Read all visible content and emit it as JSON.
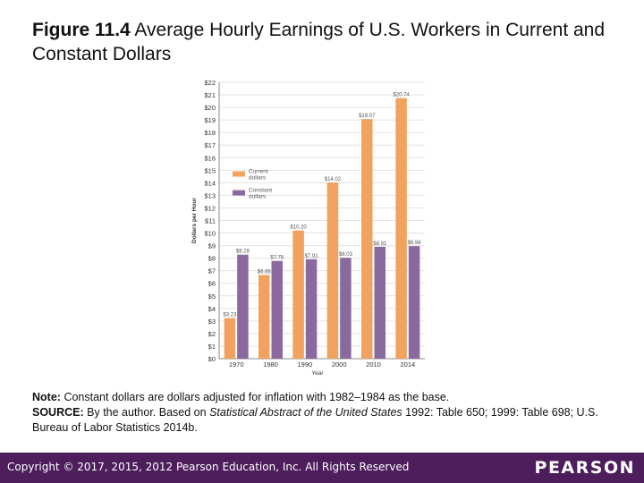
{
  "title": {
    "figure_label": "Figure 11.4",
    "text": "Average Hourly Earnings of U.S. Workers in Current and Constant Dollars"
  },
  "notes": {
    "note_label": "Note:",
    "note_text": "Constant dollars are dollars adjusted for inflation with 1982–1984 as the base.",
    "source_label": "SOURCE:",
    "source_text_1": "By the author. Based on",
    "source_italic": "Statistical Abstract of the United States",
    "source_text_2": "1992: Table 650; 1999: Table 698; U.S. Bureau of Labor Statistics 2014b."
  },
  "footer": {
    "copyright": "Copyright © 2017, 2015, 2012 Pearson Education, Inc. All Rights Reserved",
    "logo": "PEARSON"
  },
  "chart_data": {
    "type": "bar",
    "xlabel": "Year",
    "ylabel": "Dollars per Hour",
    "ylim": [
      0,
      22
    ],
    "ytick_step": 1,
    "ytick_prefix": "$",
    "categories": [
      "1970",
      "1980",
      "1990",
      "2000",
      "2010",
      "2014"
    ],
    "series": [
      {
        "name": "Current dollars",
        "color": "#f0a25e",
        "values": [
          3.23,
          6.66,
          10.2,
          14.02,
          19.07,
          20.74
        ],
        "labels": [
          "$3.23",
          "$6.66",
          "$10.20",
          "$14.02",
          "$19.07",
          "$20.74"
        ]
      },
      {
        "name": "Constant dollars",
        "color": "#8a6a9e",
        "values": [
          8.28,
          7.78,
          7.91,
          8.03,
          8.91,
          8.96
        ],
        "labels": [
          "$8.28",
          "$7.78",
          "$7.91",
          "$8.03",
          "$8.91",
          "$8.96"
        ]
      }
    ],
    "legend": "upper-left",
    "grid": true
  }
}
